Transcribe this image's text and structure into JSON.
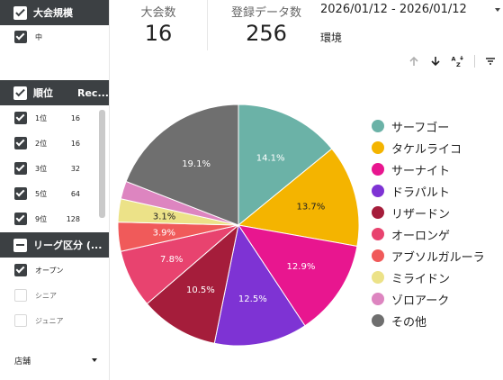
{
  "filters": {
    "size": {
      "header": "大会規模",
      "items": [
        {
          "label": "中",
          "checked": true
        }
      ]
    },
    "rank": {
      "header": "順位",
      "count_header": "Rec...",
      "items": [
        {
          "label": "1位",
          "count": "16",
          "checked": true
        },
        {
          "label": "2位",
          "count": "16",
          "checked": true
        },
        {
          "label": "3位",
          "count": "32",
          "checked": true
        },
        {
          "label": "5位",
          "count": "64",
          "checked": true
        },
        {
          "label": "9位",
          "count": "128",
          "checked": true
        }
      ]
    },
    "league": {
      "header": "リーグ区分 (...",
      "items": [
        {
          "label": "オープン",
          "checked": true
        },
        {
          "label": "シニア",
          "checked": false
        },
        {
          "label": "ジュニア",
          "checked": false
        }
      ]
    },
    "store": {
      "label": "店舗"
    }
  },
  "scorecards": {
    "tournaments": {
      "label": "大会数",
      "value": "16"
    },
    "entries": {
      "label": "登録データ数",
      "value": "256"
    }
  },
  "date_range": "2026/01/12 - 2026/01/12",
  "environment_label": "環境",
  "toolbar": {
    "icons": [
      "sort-ascending-icon",
      "sort-descending-icon",
      "sort-az-icon",
      "filter-icon"
    ]
  },
  "chart_data": {
    "type": "pie",
    "title": "",
    "legend_position": "right",
    "slices": [
      {
        "label": "サーフゴー",
        "value": 14.1,
        "display": "14.1%",
        "color": "#6bb2a7"
      },
      {
        "label": "タケルライコ",
        "value": 13.7,
        "display": "13.7%",
        "color": "#f4b400"
      },
      {
        "label": "サーナイト",
        "value": 12.9,
        "display": "12.9%",
        "color": "#e8168f"
      },
      {
        "label": "ドラパルト",
        "value": 12.5,
        "display": "12.5%",
        "color": "#7e33d4"
      },
      {
        "label": "リザードン",
        "value": 10.5,
        "display": "10.5%",
        "color": "#a51d3b"
      },
      {
        "label": "オーロンゲ",
        "value": 7.8,
        "display": "7.8%",
        "color": "#e8436f"
      },
      {
        "label": "アブソルガルーラ",
        "value": 3.9,
        "display": "3.9%",
        "color": "#f05a5a"
      },
      {
        "label": "ミライドン",
        "value": 3.1,
        "display": "3.1%",
        "color": "#ece288"
      },
      {
        "label": "ゾロアーク",
        "value": 2.4,
        "display": "",
        "color": "#dd85c0"
      },
      {
        "label": "その他",
        "value": 19.1,
        "display": "19.1%",
        "color": "#6f6f6f"
      }
    ]
  }
}
